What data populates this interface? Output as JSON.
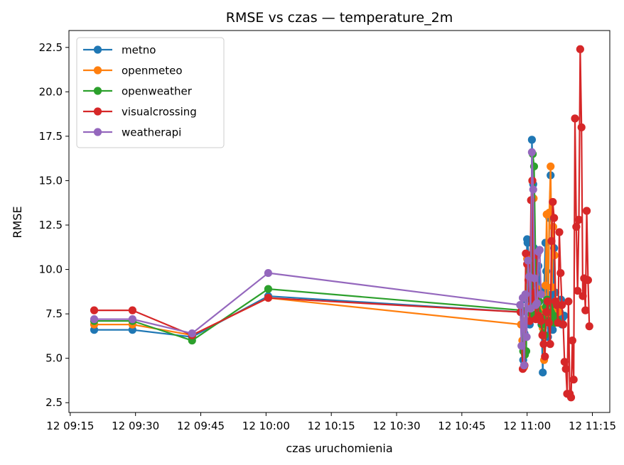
{
  "chart_data": {
    "type": "line",
    "title": "RMSE vs czas — temperature_2m",
    "xlabel": "czas uruchomienia",
    "ylabel": "RMSE",
    "x_ticks": [
      {
        "label": "12 09:15",
        "minutes": 555
      },
      {
        "label": "12 09:30",
        "minutes": 570
      },
      {
        "label": "12 09:45",
        "minutes": 585
      },
      {
        "label": "12 10:00",
        "minutes": 600
      },
      {
        "label": "12 10:15",
        "minutes": 615
      },
      {
        "label": "12 10:30",
        "minutes": 630
      },
      {
        "label": "12 10:45",
        "minutes": 645
      },
      {
        "label": "12 11:00",
        "minutes": 660
      },
      {
        "label": "12 11:15",
        "minutes": 675
      }
    ],
    "y_ticks": [
      "2.5",
      "5.0",
      "7.5",
      "10.0",
      "12.5",
      "15.0",
      "17.5",
      "20.0",
      "22.5"
    ],
    "xlim": [
      554.7,
      679.0
    ],
    "ylim": [
      1.95,
      23.45
    ],
    "legend": "upper-left",
    "grid": false,
    "series": [
      {
        "name": "metno",
        "color": "#1f77b4",
        "x": [
          560.5,
          569.3,
          583.0,
          600.5,
          658.7,
          659.1,
          659.4,
          659.7,
          660.0,
          660.1,
          660.4,
          660.6,
          660.9,
          661.1,
          661.4,
          661.6,
          662.0,
          662.3,
          662.6,
          663.0,
          663.3,
          663.6,
          663.9,
          664.2,
          664.4,
          664.6,
          664.8,
          665.1,
          665.4,
          665.7,
          665.9,
          666.2,
          666.5,
          666.8,
          667.0,
          667.3,
          667.5,
          667.8,
          668.0,
          668.2,
          668.5
        ],
        "y": [
          6.6,
          6.6,
          6.2,
          8.5,
          7.6,
          4.9,
          6.4,
          8.3,
          11.7,
          11.5,
          10.8,
          6.9,
          9.1,
          17.3,
          14.8,
          11.2,
          9.6,
          7.4,
          10.2,
          8.8,
          6.9,
          4.2,
          8.9,
          11.5,
          9.9,
          8.2,
          6.2,
          12.9,
          15.3,
          8.6,
          6.6,
          11.2,
          8.7,
          7.7,
          8.0,
          7.1,
          7.6,
          8.3,
          6.9,
          7.3,
          7.4
        ]
      },
      {
        "name": "openmeteo",
        "color": "#ff7f0e",
        "x": [
          560.5,
          569.3,
          583.0,
          600.5,
          658.6,
          658.9,
          659.3,
          659.6,
          660.0,
          660.3,
          660.6,
          660.9,
          661.2,
          661.5,
          661.8,
          662.1,
          662.4,
          662.7,
          663.0,
          663.3,
          663.6,
          663.9,
          664.2,
          664.5,
          664.8,
          665.1,
          665.4,
          665.7,
          666.0,
          666.3,
          666.6,
          666.9,
          667.2
        ],
        "y": [
          6.9,
          6.9,
          6.3,
          8.4,
          6.9,
          6.0,
          4.5,
          7.1,
          10.6,
          10.2,
          7.9,
          7.4,
          15.0,
          14.0,
          9.7,
          8.6,
          8.9,
          7.8,
          7.5,
          7.6,
          6.7,
          4.9,
          9.1,
          13.1,
          7.5,
          13.2,
          15.8,
          9.0,
          12.4,
          10.8,
          8.2,
          7.8,
          7.6
        ]
      },
      {
        "name": "openweather",
        "color": "#2ca02c",
        "x": [
          560.5,
          569.3,
          583.0,
          600.5,
          658.8,
          659.1,
          659.5,
          659.8,
          660.1,
          660.4,
          660.7,
          661.0,
          661.3,
          661.6,
          661.9,
          662.2,
          662.5,
          662.8,
          663.1,
          663.4,
          663.7,
          664.0,
          664.3,
          664.6,
          664.9,
          665.2,
          665.5,
          665.8,
          666.1,
          666.4,
          666.7,
          667.0
        ],
        "y": [
          7.1,
          7.1,
          6.0,
          8.9,
          7.7,
          5.4,
          5.2,
          5.4,
          10.3,
          10.0,
          8.5,
          7.5,
          16.5,
          15.8,
          11.0,
          8.7,
          7.6,
          8.2,
          7.3,
          6.9,
          6.4,
          6.3,
          7.9,
          8.3,
          7.1,
          7.0,
          7.6,
          8.1,
          7.4,
          7.0,
          7.2,
          7.1
        ]
      },
      {
        "name": "visualcrossing",
        "color": "#d62728",
        "x": [
          560.5,
          569.3,
          583.0,
          600.5,
          658.5,
          659.0,
          659.4,
          659.7,
          660.0,
          660.3,
          660.6,
          660.9,
          661.2,
          661.4,
          661.7,
          662.0,
          662.3,
          662.6,
          662.9,
          663.2,
          663.5,
          663.8,
          664.1,
          664.4,
          664.7,
          665.0,
          665.3,
          665.6,
          665.9,
          666.2,
          666.5,
          666.8,
          667.1,
          667.4,
          667.7,
          668.0,
          668.3,
          668.6,
          668.9,
          669.2,
          669.5,
          669.8,
          670.1,
          670.4,
          670.7,
          671.0,
          671.3,
          671.6,
          671.9,
          672.2,
          672.5,
          672.8,
          673.1,
          673.4,
          673.7,
          674.0,
          674.3
        ],
        "y": [
          7.7,
          7.7,
          6.3,
          8.4,
          7.6,
          4.4,
          4.6,
          10.9,
          10.3,
          9.4,
          7.1,
          13.9,
          15.0,
          8.3,
          8.7,
          7.2,
          10.8,
          7.4,
          7.3,
          7.1,
          6.3,
          5.8,
          5.1,
          7.6,
          8.2,
          7.0,
          5.8,
          11.6,
          13.8,
          12.9,
          8.2,
          8.0,
          7.0,
          12.1,
          9.8,
          8.0,
          6.9,
          4.8,
          4.4,
          3.0,
          8.2,
          3.0,
          2.8,
          6.0,
          3.8,
          18.5,
          12.4,
          8.8,
          12.8,
          22.4,
          18.0,
          8.5,
          9.5,
          7.7,
          13.3,
          9.4,
          6.8
        ]
      },
      {
        "name": "weatherapi",
        "color": "#9467bd",
        "x": [
          560.5,
          569.3,
          583.0,
          600.5,
          658.4,
          658.7,
          659.0,
          659.3,
          659.6,
          659.9,
          660.2,
          660.5,
          660.8,
          661.1,
          661.4,
          661.7,
          662.0,
          662.3,
          662.6,
          662.9,
          663.2
        ],
        "y": [
          7.2,
          7.2,
          6.4,
          9.8,
          8.0,
          5.7,
          8.4,
          4.6,
          8.6,
          6.2,
          10.5,
          9.6,
          7.8,
          16.6,
          14.5,
          9.5,
          8.0,
          8.1,
          11.0,
          11.1,
          8.6
        ]
      }
    ]
  }
}
